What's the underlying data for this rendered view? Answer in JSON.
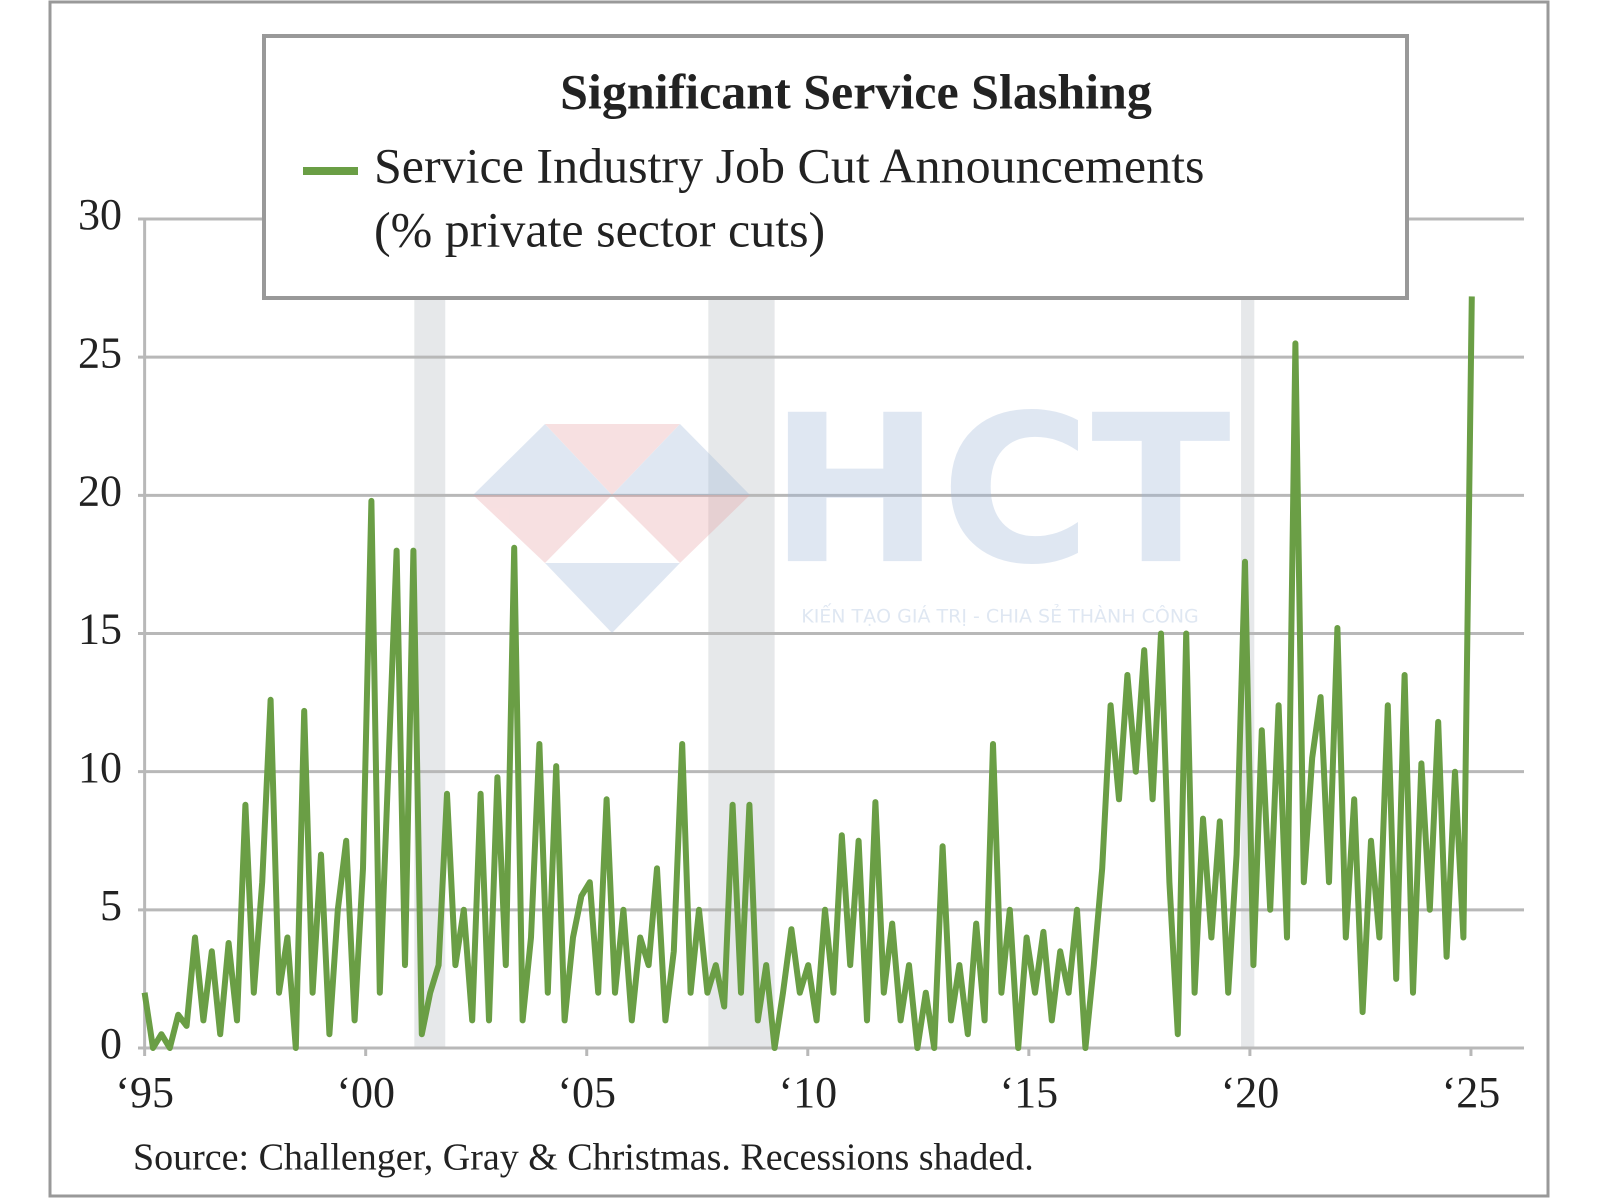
{
  "chart_data": {
    "type": "line",
    "title": "Significant Service Slashing",
    "ylabel": "(% private sector cuts)",
    "source": "Source: Challenger, Gray & Christmas. Recessions shaded.",
    "watermark": {
      "logo": "HCT",
      "slogan": "KIẾN TẠO GIÁ TRỊ - CHIA SẺ THÀNH CÔNG"
    },
    "x": [
      1995.0,
      1995.19,
      1995.38,
      1995.57,
      1995.76,
      1995.95,
      1996.14,
      1996.33,
      1996.52,
      1996.71,
      1996.9,
      1997.09,
      1997.28,
      1997.47,
      1997.66,
      1997.85,
      1998.04,
      1998.23,
      1998.42,
      1998.61,
      1998.8,
      1998.99,
      1999.18,
      1999.37,
      1999.56,
      1999.75,
      1999.94,
      2000.13,
      2000.32,
      2000.51,
      2000.7,
      2000.89,
      2001.08,
      2001.27,
      2001.46,
      2001.65,
      2001.84,
      2002.03,
      2002.22,
      2002.41,
      2002.6,
      2002.79,
      2002.98,
      2003.17,
      2003.36,
      2003.55,
      2003.74,
      2003.93,
      2004.12,
      2004.31,
      2004.5,
      2004.69,
      2004.88,
      2005.07,
      2005.26,
      2005.45,
      2005.64,
      2005.83,
      2006.02,
      2006.21,
      2006.4,
      2006.59,
      2006.78,
      2006.97,
      2007.16,
      2007.35,
      2007.54,
      2007.73,
      2007.92,
      2008.11,
      2008.3,
      2008.49,
      2008.68,
      2008.87,
      2009.06,
      2009.25,
      2009.44,
      2009.63,
      2009.82,
      2010.01,
      2010.2,
      2010.39,
      2010.58,
      2010.77,
      2010.96,
      2011.15,
      2011.34,
      2011.53,
      2011.72,
      2011.91,
      2012.1,
      2012.29,
      2012.48,
      2012.67,
      2012.86,
      2013.05,
      2013.24,
      2013.43,
      2013.62,
      2013.81,
      2014.0,
      2014.19,
      2014.38,
      2014.57,
      2014.76,
      2014.95,
      2015.14,
      2015.33,
      2015.52,
      2015.71,
      2015.9,
      2016.09,
      2016.28,
      2016.47,
      2016.66,
      2016.85,
      2017.04,
      2017.23,
      2017.42,
      2017.61,
      2017.8,
      2017.99,
      2018.18,
      2018.37,
      2018.56,
      2018.75,
      2018.94,
      2019.13,
      2019.32,
      2019.51,
      2019.7,
      2019.89,
      2020.08,
      2020.27,
      2020.46,
      2020.65,
      2020.84,
      2021.03,
      2021.22,
      2021.41,
      2021.6,
      2021.79,
      2021.98,
      2022.17,
      2022.36,
      2022.55,
      2022.74,
      2022.93,
      2023.12,
      2023.31,
      2023.5,
      2023.69,
      2023.88,
      2024.07,
      2024.26,
      2024.45,
      2024.64,
      2024.83,
      2025.02
    ],
    "series": [
      {
        "name": "Service Industry Job Cut Announcements",
        "color": "#6a9e45",
        "values": [
          2,
          0,
          0.5,
          0,
          1.2,
          0.8,
          4,
          1,
          3.5,
          0.5,
          3.8,
          1,
          8.8,
          2,
          6,
          12.6,
          2,
          4,
          0,
          12.2,
          2,
          7,
          0.5,
          5,
          7.5,
          1,
          6.5,
          19.8,
          2,
          10,
          18,
          3,
          18,
          0.5,
          2,
          3,
          9.2,
          3,
          5,
          1,
          9.2,
          1,
          9.8,
          3,
          18.1,
          1,
          4,
          11,
          2,
          10.2,
          1,
          4,
          5.5,
          6,
          2,
          9,
          2,
          5,
          1,
          4,
          3,
          6.5,
          1,
          3.5,
          11,
          2,
          5,
          2,
          3,
          1.5,
          8.8,
          2,
          8.8,
          1,
          3,
          0,
          2,
          4.3,
          2,
          3,
          1,
          5,
          2,
          7.7,
          3,
          7.5,
          1,
          8.9,
          2,
          4.5,
          1,
          3,
          0,
          2,
          0,
          7.3,
          1,
          3,
          0.5,
          4.5,
          1,
          11,
          2,
          5,
          0,
          4,
          2,
          4.2,
          1,
          3.5,
          2,
          5,
          0,
          3,
          6.5,
          12.4,
          9,
          13.5,
          10,
          14.4,
          9,
          15,
          6,
          0.5,
          15,
          2,
          8.3,
          4,
          8.2,
          2,
          7,
          17.6,
          3,
          11.5,
          5,
          12.4,
          4,
          25.5,
          6,
          10.5,
          12.7,
          6,
          15.2,
          4,
          9,
          1.3,
          7.5,
          4,
          12.4,
          2.5,
          13.5,
          2,
          10.3,
          5,
          11.8,
          3.3,
          10,
          4,
          27.2
        ]
      }
    ],
    "recessions": [
      [
        2001.1,
        2001.8
      ],
      [
        2007.75,
        2009.25
      ],
      [
        2019.8,
        2020.1
      ]
    ],
    "recession_color": "#e6e8ea",
    "xlim": [
      1994.85,
      2026.2
    ],
    "ylim": [
      0,
      30
    ],
    "xticks": [
      {
        "value": 1995,
        "label": "‘95"
      },
      {
        "value": 2000,
        "label": "‘00"
      },
      {
        "value": 2005,
        "label": "‘05"
      },
      {
        "value": 2010,
        "label": "‘10"
      },
      {
        "value": 2015,
        "label": "‘15"
      },
      {
        "value": 2020,
        "label": "‘20"
      },
      {
        "value": 2025,
        "label": "‘25"
      }
    ],
    "yticks": [
      0,
      5,
      10,
      15,
      20,
      25,
      30
    ],
    "grid": true,
    "legend": "top"
  }
}
